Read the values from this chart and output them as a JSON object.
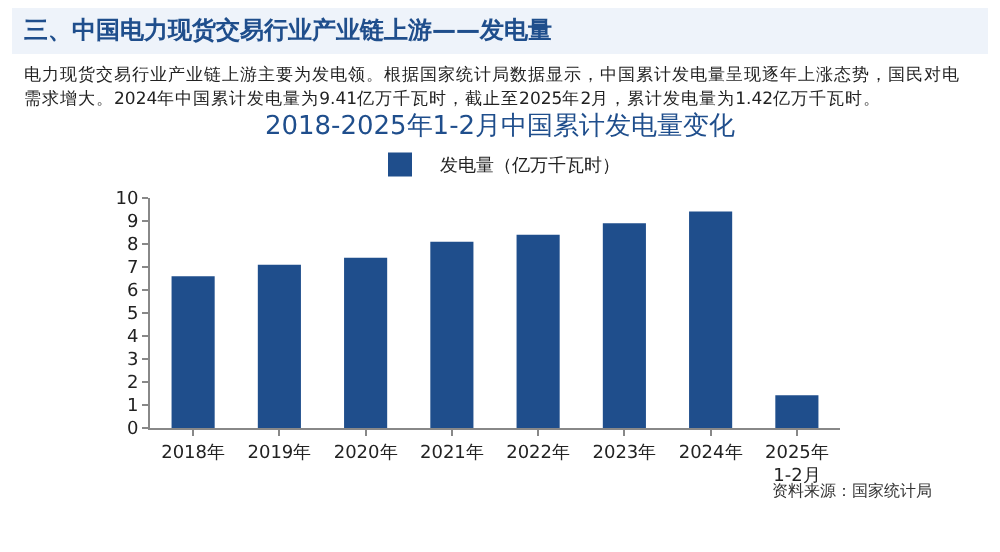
{
  "chart_data": {
    "type": "bar",
    "title": "2018-2025年1-2月中国累计发电量变化",
    "subtitle": "电力现货交易行业产业链上游主要为发电领。根据国家统计局数据显示，中国累计发电量呈现逐年上涨态势，国民对电需求增大。2024年中国累计发电量为9.41亿万千瓦时，截止至2025年2月，累计发电量为1.42亿万千瓦时。",
    "annotations": [
      "三、中国电力现货交易行业产业链上游——发电量",
      "资料来源：国家统计局"
    ],
    "categories": [
      "2018年",
      "2019年",
      "2020年",
      "2021年",
      "2022年",
      "2023年",
      "2024年",
      "2025年\n1-2月"
    ],
    "series": [
      {
        "name": "发电量（亿万千瓦时）",
        "color": "#1f4e8c",
        "values": [
          6.6,
          7.1,
          7.4,
          8.1,
          8.4,
          8.9,
          9.41,
          1.42
        ]
      }
    ],
    "ylim": [
      0,
      10
    ],
    "yticks": [
      0,
      1,
      2,
      3,
      4,
      5,
      6,
      7,
      8,
      9,
      10
    ],
    "grid": false,
    "legend": "top"
  }
}
